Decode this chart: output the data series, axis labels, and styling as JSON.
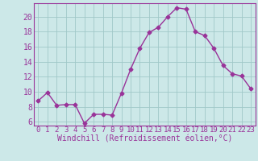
{
  "x": [
    0,
    1,
    2,
    3,
    4,
    5,
    6,
    7,
    8,
    9,
    10,
    11,
    12,
    13,
    14,
    15,
    16,
    17,
    18,
    19,
    20,
    21,
    22,
    23
  ],
  "y": [
    8.8,
    9.9,
    8.2,
    8.3,
    8.3,
    5.8,
    7.0,
    7.0,
    6.9,
    9.8,
    13.0,
    15.8,
    17.9,
    18.6,
    20.0,
    21.2,
    21.0,
    18.0,
    17.5,
    15.8,
    13.5,
    12.4,
    12.1,
    10.4
  ],
  "line_color": "#993399",
  "marker": "D",
  "markersize": 2.5,
  "linewidth": 1.0,
  "bg_color": "#cce8e8",
  "grid_color": "#a0c8c8",
  "xlabel": "Windchill (Refroidissement éolien,°C)",
  "xlim": [
    -0.5,
    23.5
  ],
  "ylim": [
    5.5,
    21.8
  ],
  "yticks": [
    6,
    8,
    10,
    12,
    14,
    16,
    18,
    20
  ],
  "xticks": [
    0,
    1,
    2,
    3,
    4,
    5,
    6,
    7,
    8,
    9,
    10,
    11,
    12,
    13,
    14,
    15,
    16,
    17,
    18,
    19,
    20,
    21,
    22,
    23
  ],
  "label_color": "#993399",
  "spine_color": "#993399",
  "xlabel_fontsize": 7,
  "ytick_fontsize": 7,
  "xtick_fontsize": 6.5
}
